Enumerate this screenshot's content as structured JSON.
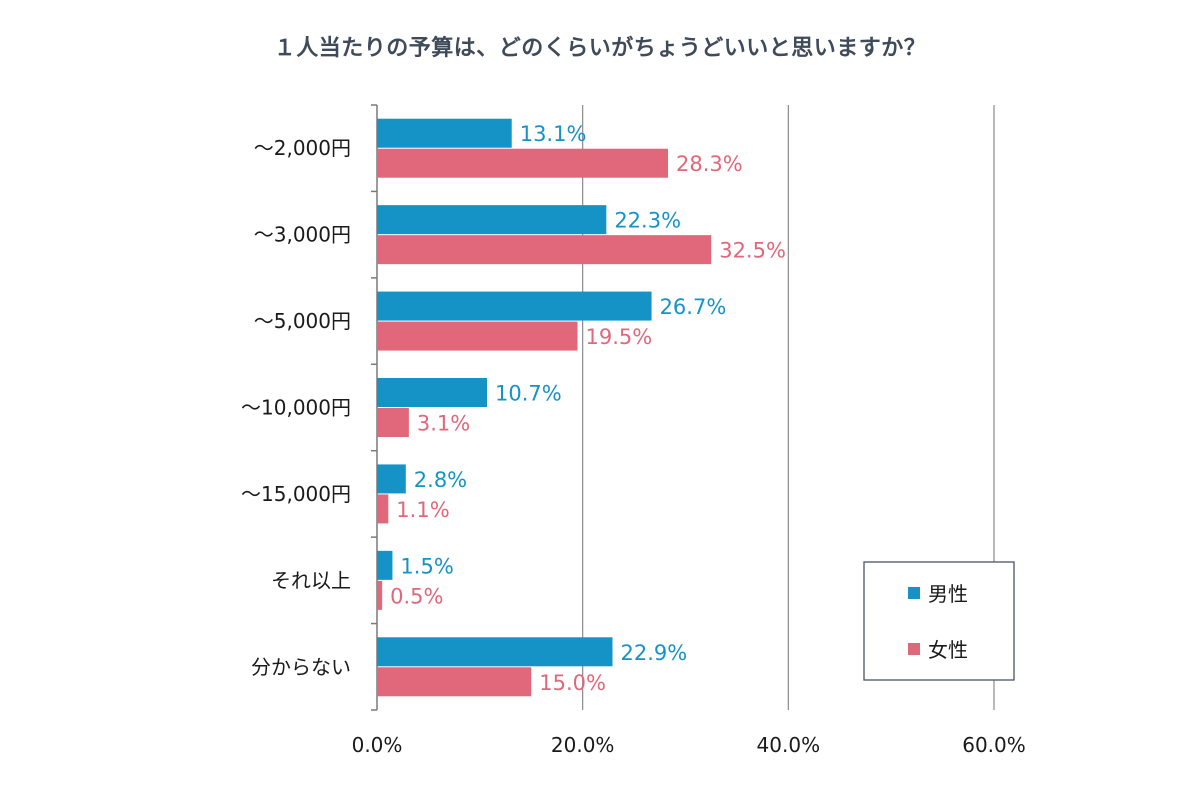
{
  "chart_data": {
    "type": "bar",
    "orientation": "horizontal",
    "title": "１人当たりの予算は、どのくらいがちょうどいいと思いますか？",
    "categories": [
      "～2,000円",
      "～3,000円",
      "～5,000円",
      "～10,000円",
      "～15,000円",
      "それ以上",
      "分からない"
    ],
    "series": [
      {
        "name": "男性",
        "color": "#1593c7",
        "values": [
          13.1,
          22.3,
          26.7,
          10.7,
          2.8,
          1.5,
          22.9
        ],
        "labels": [
          "13.1%",
          "22.3%",
          "26.7%",
          "10.7%",
          "2.8%",
          "1.5%",
          "22.9%"
        ]
      },
      {
        "name": "女性",
        "color": "#e0687a",
        "values": [
          28.3,
          32.5,
          19.5,
          3.1,
          1.1,
          0.5,
          15.0
        ],
        "labels": [
          "28.3%",
          "32.5%",
          "19.5%",
          "3.1%",
          "1.1%",
          "0.5%",
          "15.0%"
        ]
      }
    ],
    "xlim": [
      0,
      60
    ],
    "x_ticks": [
      0,
      20,
      40,
      60
    ],
    "x_tick_labels": [
      "0.0%",
      "20.0%",
      "40.0%",
      "60.0%"
    ],
    "grid": true,
    "legend_position": "bottom-right"
  }
}
